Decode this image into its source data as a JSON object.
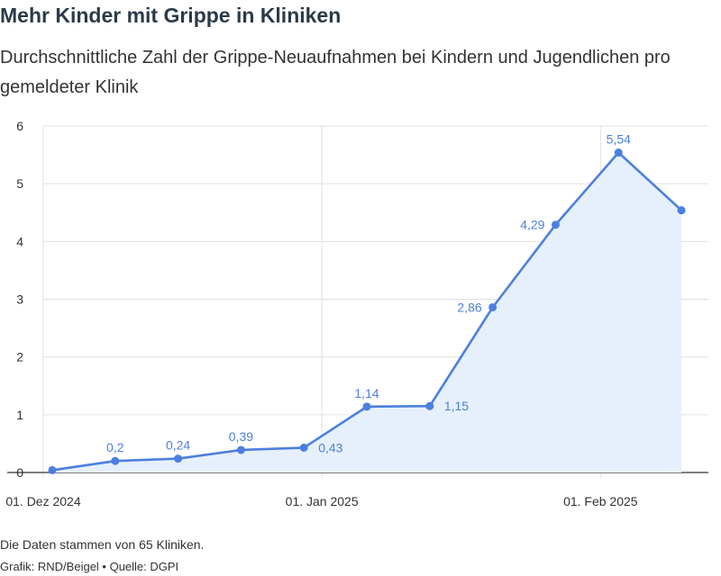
{
  "title": "Mehr Kinder mit Grippe in Kliniken",
  "subtitle": "Durchschnittliche Zahl der Grippe-Neuaufnahmen bei Kindern und Jugendlichen pro gemeldeter Klinik",
  "note": "Die Daten stammen von 65 Kliniken.",
  "credit": "Grafik: RND/Beigel • Quelle: DGPI",
  "colors": {
    "line": "#4c7fe0",
    "area": "#e6f0fc",
    "label": "#4c7fd9",
    "grid": "#e0e0e0"
  },
  "chart_data": {
    "type": "area",
    "x": [
      "2024-12-02",
      "2024-12-09",
      "2024-12-16",
      "2024-12-23",
      "2024-12-30",
      "2025-01-06",
      "2025-01-13",
      "2025-01-20",
      "2025-01-27",
      "2025-02-03",
      "2025-02-10"
    ],
    "series": [
      {
        "values": [
          0.04,
          0.2,
          0.24,
          0.39,
          0.43,
          1.14,
          1.15,
          2.86,
          4.29,
          5.54,
          4.54
        ]
      }
    ],
    "data_labels": [
      "",
      "0,2",
      "0,24",
      "0,39",
      "0,43",
      "1,14",
      "1,15",
      "2,86",
      "4,29",
      "5,54",
      ""
    ],
    "ylim": [
      0,
      6
    ],
    "yticks": [
      "0",
      "1",
      "2",
      "3",
      "4",
      "5",
      "6"
    ],
    "xticks": [
      {
        "date": "2024-12-01",
        "label": "01. Dez 2024"
      },
      {
        "date": "2025-01-01",
        "label": "01. Jan 2025"
      },
      {
        "date": "2025-02-01",
        "label": "01. Feb 2025"
      }
    ],
    "grid": true
  }
}
